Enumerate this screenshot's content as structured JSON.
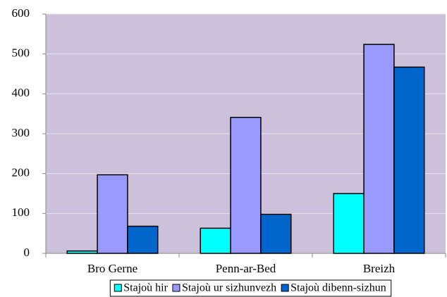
{
  "chart_data": {
    "type": "bar",
    "categories": [
      "Bro Gerne",
      "Penn-ar-Bed",
      "Breizh"
    ],
    "series": [
      {
        "name": "Stajoù hir",
        "color": "#00ffff",
        "values": [
          6,
          63,
          150
        ]
      },
      {
        "name": "Stajoù ur sizhunvezh",
        "color": "#9999ff",
        "values": [
          197,
          341,
          524
        ]
      },
      {
        "name": "Stajoù dibenn-sizhun",
        "color": "#0066cc",
        "values": [
          68,
          98,
          467
        ]
      }
    ],
    "ylim": [
      0,
      600
    ],
    "yticks": [
      0,
      100,
      200,
      300,
      400,
      500,
      600
    ],
    "grid": true,
    "legend": "bottom"
  }
}
